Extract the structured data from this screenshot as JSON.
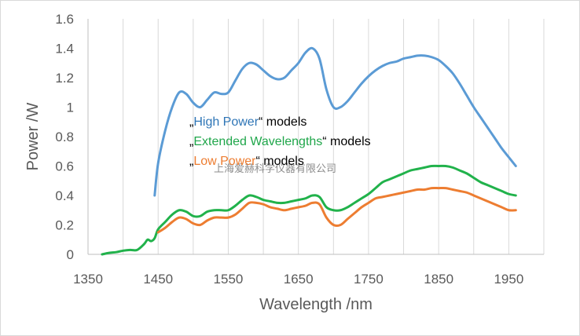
{
  "chart_data": {
    "type": "line",
    "title": "",
    "xlabel": "Wavelength /nm",
    "ylabel": "Power /W",
    "xlim": [
      1350,
      2000
    ],
    "ylim": [
      0,
      1.6
    ],
    "xticks": [
      1350,
      1450,
      1550,
      1650,
      1750,
      1850,
      1950
    ],
    "yticks": [
      0,
      0.2,
      0.4,
      0.6,
      0.8,
      1,
      1.2,
      1.4,
      1.6
    ],
    "ytick_labels": [
      "0",
      "0.2",
      "0.4",
      "0.6",
      "0.8",
      "1",
      "1.2",
      "1.4",
      "1.6"
    ],
    "grid": "vertical",
    "series": [
      {
        "color": "#5b9bd5",
        "x": [
          1445,
          1450,
          1460,
          1470,
          1480,
          1490,
          1500,
          1510,
          1520,
          1530,
          1540,
          1550,
          1560,
          1570,
          1580,
          1590,
          1600,
          1610,
          1620,
          1630,
          1640,
          1650,
          1660,
          1670,
          1680,
          1690,
          1700,
          1710,
          1720,
          1730,
          1740,
          1750,
          1760,
          1770,
          1780,
          1790,
          1800,
          1810,
          1820,
          1830,
          1840,
          1850,
          1860,
          1870,
          1880,
          1890,
          1900,
          1910,
          1920,
          1930,
          1940,
          1950,
          1960
        ],
        "y": [
          0.4,
          0.62,
          0.84,
          1.0,
          1.1,
          1.09,
          1.03,
          1.0,
          1.05,
          1.1,
          1.09,
          1.1,
          1.18,
          1.26,
          1.3,
          1.29,
          1.25,
          1.21,
          1.19,
          1.2,
          1.25,
          1.3,
          1.37,
          1.4,
          1.33,
          1.12,
          1.0,
          1.0,
          1.04,
          1.1,
          1.16,
          1.21,
          1.25,
          1.28,
          1.3,
          1.31,
          1.33,
          1.34,
          1.35,
          1.35,
          1.34,
          1.32,
          1.28,
          1.23,
          1.16,
          1.08,
          1.0,
          0.93,
          0.86,
          0.79,
          0.72,
          0.66,
          0.6
        ]
      },
      {
        "color": "#21b24b",
        "x": [
          1370,
          1380,
          1390,
          1400,
          1410,
          1420,
          1430,
          1435,
          1440,
          1445,
          1450,
          1460,
          1470,
          1480,
          1490,
          1500,
          1510,
          1520,
          1530,
          1540,
          1550,
          1560,
          1570,
          1580,
          1590,
          1600,
          1610,
          1620,
          1630,
          1640,
          1650,
          1660,
          1670,
          1680,
          1690,
          1700,
          1710,
          1720,
          1730,
          1740,
          1750,
          1760,
          1770,
          1780,
          1790,
          1800,
          1810,
          1820,
          1830,
          1840,
          1850,
          1860,
          1870,
          1880,
          1890,
          1900,
          1910,
          1920,
          1930,
          1940,
          1950,
          1960
        ],
        "y": [
          0.0,
          0.01,
          0.015,
          0.025,
          0.03,
          0.03,
          0.07,
          0.1,
          0.09,
          0.11,
          0.17,
          0.22,
          0.27,
          0.3,
          0.29,
          0.26,
          0.26,
          0.29,
          0.3,
          0.3,
          0.3,
          0.33,
          0.37,
          0.4,
          0.39,
          0.37,
          0.36,
          0.35,
          0.35,
          0.36,
          0.37,
          0.38,
          0.4,
          0.39,
          0.32,
          0.3,
          0.3,
          0.32,
          0.35,
          0.38,
          0.41,
          0.45,
          0.49,
          0.51,
          0.53,
          0.55,
          0.57,
          0.58,
          0.59,
          0.6,
          0.6,
          0.6,
          0.59,
          0.57,
          0.55,
          0.52,
          0.49,
          0.47,
          0.45,
          0.43,
          0.41,
          0.4
        ]
      },
      {
        "color": "#ed7d31",
        "x": [
          1450,
          1460,
          1470,
          1480,
          1490,
          1500,
          1510,
          1520,
          1530,
          1540,
          1550,
          1560,
          1570,
          1580,
          1590,
          1600,
          1610,
          1620,
          1630,
          1640,
          1650,
          1660,
          1670,
          1680,
          1690,
          1700,
          1710,
          1720,
          1730,
          1740,
          1750,
          1760,
          1770,
          1780,
          1790,
          1800,
          1810,
          1820,
          1830,
          1840,
          1850,
          1860,
          1870,
          1880,
          1890,
          1900,
          1910,
          1920,
          1930,
          1940,
          1950,
          1960
        ],
        "y": [
          0.15,
          0.18,
          0.22,
          0.25,
          0.24,
          0.21,
          0.2,
          0.23,
          0.25,
          0.25,
          0.25,
          0.27,
          0.31,
          0.35,
          0.35,
          0.34,
          0.32,
          0.31,
          0.3,
          0.31,
          0.32,
          0.33,
          0.35,
          0.34,
          0.25,
          0.2,
          0.2,
          0.24,
          0.28,
          0.32,
          0.35,
          0.38,
          0.39,
          0.4,
          0.41,
          0.42,
          0.43,
          0.44,
          0.44,
          0.45,
          0.45,
          0.45,
          0.44,
          0.43,
          0.42,
          0.4,
          0.38,
          0.36,
          0.34,
          0.32,
          0.3,
          0.3
        ]
      }
    ]
  },
  "annotations": [
    {
      "prefix": "„",
      "highlight": "High Power",
      "suffix": "“ models",
      "color": "#2e75b6"
    },
    {
      "prefix": "„",
      "highlight": "Extended Wavelengths",
      "suffix": "“ models",
      "color": "#1fa64a"
    },
    {
      "prefix": "„",
      "highlight": "Low Power",
      "suffix": "“ models",
      "color": "#ed7d31"
    }
  ],
  "watermark": "上海爱赫科学仪器有限公司",
  "colors": {
    "axis": "#bfbfbf",
    "grid": "#d9d9d9",
    "text": "#595959"
  }
}
